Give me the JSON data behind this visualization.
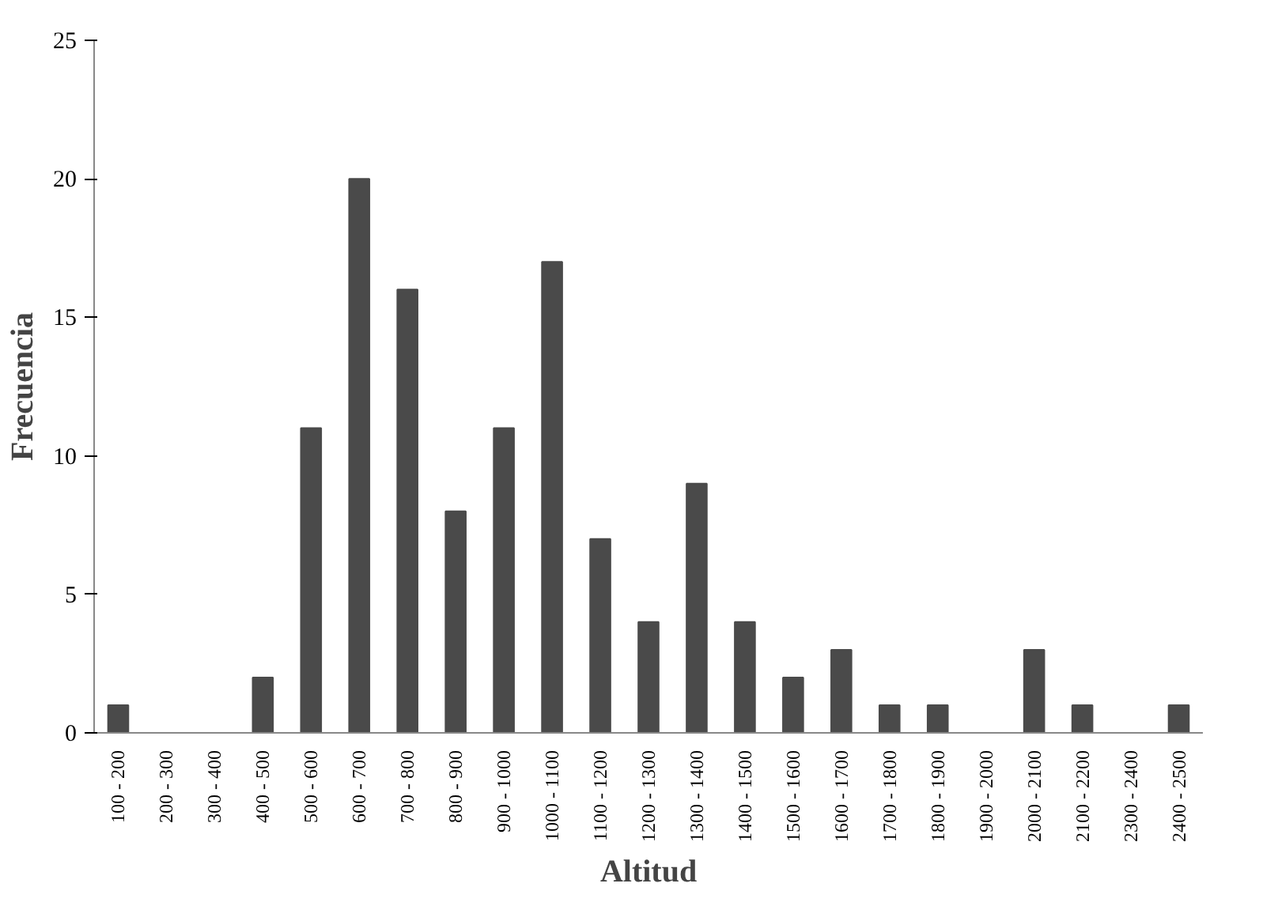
{
  "chart_data": {
    "type": "bar",
    "xlabel": "Altitud",
    "ylabel": "Frecuencia",
    "categories": [
      "100 - 200",
      "200 - 300",
      "300 - 400",
      "400 - 500",
      "500 - 600",
      "600 - 700",
      "700 - 800",
      "800 - 900",
      "900 - 1000",
      "1000 - 1100",
      "1100 - 1200",
      "1200 - 1300",
      "1300 - 1400",
      "1400 - 1500",
      "1500 - 1600",
      "1600 - 1700",
      "1700 - 1800",
      "1800 - 1900",
      "1900 - 2000",
      "2000 - 2100",
      "2100 - 2200",
      "2300 - 2400",
      "2400 - 2500"
    ],
    "values": [
      1,
      0,
      0,
      2,
      11,
      20,
      16,
      8,
      11,
      17,
      7,
      4,
      9,
      4,
      2,
      3,
      1,
      1,
      0,
      3,
      1,
      0,
      1
    ],
    "color": "#4a4a4a",
    "ylim": [
      0,
      25
    ],
    "yticks": [
      0,
      5,
      10,
      15,
      20,
      25
    ],
    "grid": false
  }
}
